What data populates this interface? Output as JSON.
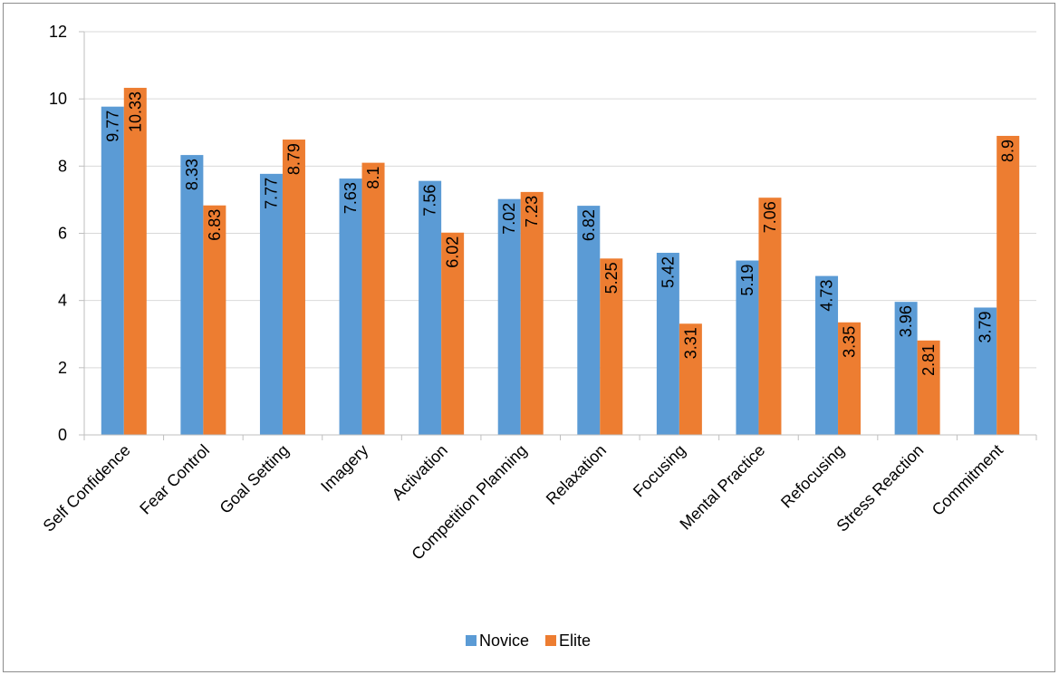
{
  "chart_data": {
    "type": "bar",
    "title": "",
    "xlabel": "",
    "ylabel": "",
    "ylim": [
      0,
      12
    ],
    "yticks": [
      0,
      2,
      4,
      6,
      8,
      10,
      12
    ],
    "grid": true,
    "legend_position": "bottom",
    "categories": [
      "Self Confidence",
      "Fear Control",
      "Goal Setting",
      "Imagery",
      "Activation",
      "Competition Planning",
      "Relaxation",
      "Focusing",
      "Mental Practice",
      "Refocusing",
      "Stress Reaction",
      "Commitment"
    ],
    "series": [
      {
        "name": "Novice",
        "color": "#5b9bd5",
        "values": [
          9.77,
          8.33,
          7.77,
          7.63,
          7.56,
          7.02,
          6.82,
          5.42,
          5.19,
          4.73,
          3.96,
          3.79
        ]
      },
      {
        "name": "Elite",
        "color": "#ed7d31",
        "values": [
          10.33,
          6.83,
          8.79,
          8.1,
          6.02,
          7.23,
          5.25,
          3.31,
          7.06,
          3.35,
          2.81,
          8.9
        ]
      }
    ]
  }
}
